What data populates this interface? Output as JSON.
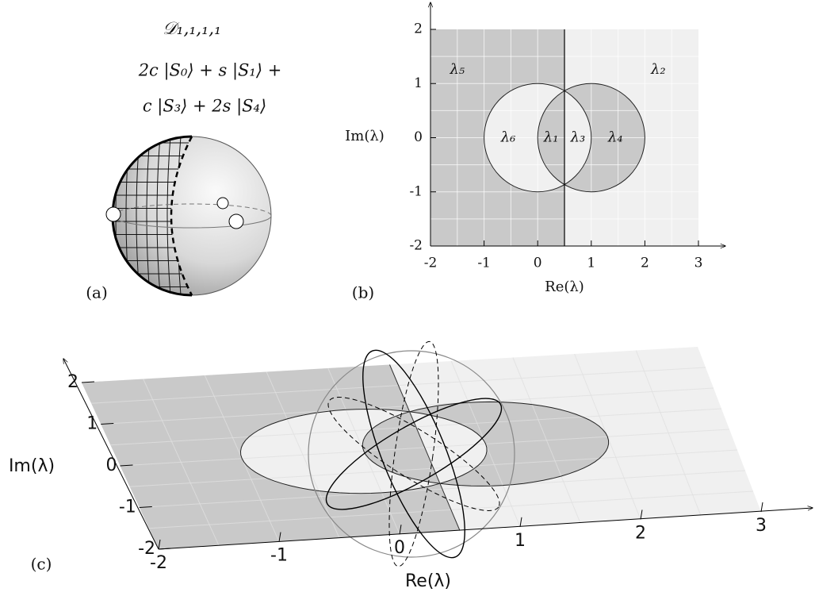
{
  "panel_a": {
    "label": "(a)",
    "title": "𝒟₁,₁,₁,₁",
    "state_lines": [
      "2c |S₀⟩ + s |S₁⟩ +",
      "c |S₃⟩ + 2s |S₄⟩"
    ]
  },
  "panel_b": {
    "label": "(b)",
    "xlabel": "Re(λ)",
    "ylabel": "Im(λ)",
    "xlim": [
      -2,
      3
    ],
    "ylim": [
      -2,
      2
    ],
    "xticks": [
      -2,
      -1,
      0,
      1,
      2,
      3
    ],
    "yticks": [
      -2,
      -1,
      0,
      1,
      2
    ],
    "boundary": 0.5,
    "circles": [
      {
        "center": 0,
        "radius": 1
      },
      {
        "center": 1,
        "radius": 1
      }
    ],
    "regions": [
      "λ₁",
      "λ₂",
      "λ₃",
      "λ₄",
      "λ₅",
      "λ₆"
    ]
  },
  "panel_c": {
    "label": "(c)",
    "xlabel": "Re(λ)",
    "ylabel": "Im(λ)",
    "xticks": [
      -2,
      -1,
      0,
      1,
      2,
      3
    ],
    "yticks": [
      -2,
      -1,
      0,
      1,
      2
    ]
  }
}
